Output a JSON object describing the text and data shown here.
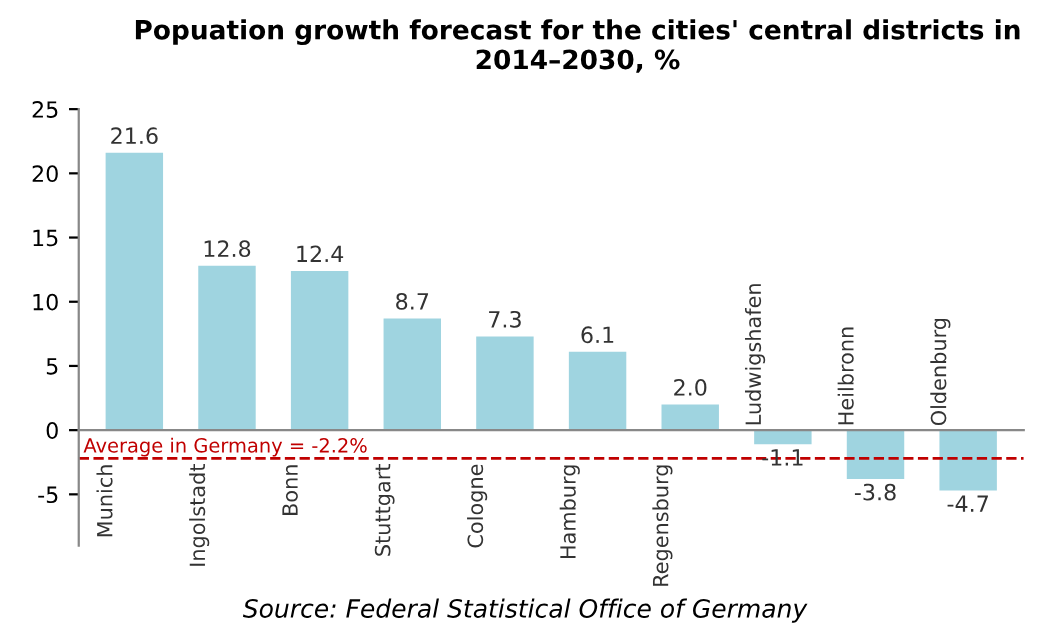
{
  "chart_data": {
    "type": "bar",
    "title": "Popuation growth forecast for the cities' central districts in 2014–2030, %",
    "categories": [
      "Munich",
      "Ingolstadt",
      "Bonn",
      "Stuttgart",
      "Cologne",
      "Hamburg",
      "Regensburg",
      "Ludwigshafen",
      "Heilbronn",
      "Oldenburg"
    ],
    "values": [
      21.6,
      12.8,
      12.4,
      8.7,
      7.3,
      6.1,
      2.0,
      -1.1,
      -3.8,
      -4.7
    ],
    "value_labels": [
      "21.6",
      "12.8",
      "12.4",
      "8.7",
      "7.3",
      "6.1",
      "2.0",
      "-1.1",
      "-3.8",
      "-4.7"
    ],
    "color": "#9fd4e0",
    "ylim": [
      -9,
      25
    ],
    "yticks": [
      -5,
      0,
      5,
      10,
      15,
      20,
      25
    ],
    "grid": false,
    "ref_lines": [
      {
        "axis": "y",
        "value": -2.2,
        "label": "Average in Germany = -2.2%",
        "color": "#c00000",
        "line_style": "dashed"
      }
    ],
    "annotations": [
      "Source: Federal Statistical Office of Germany"
    ]
  }
}
